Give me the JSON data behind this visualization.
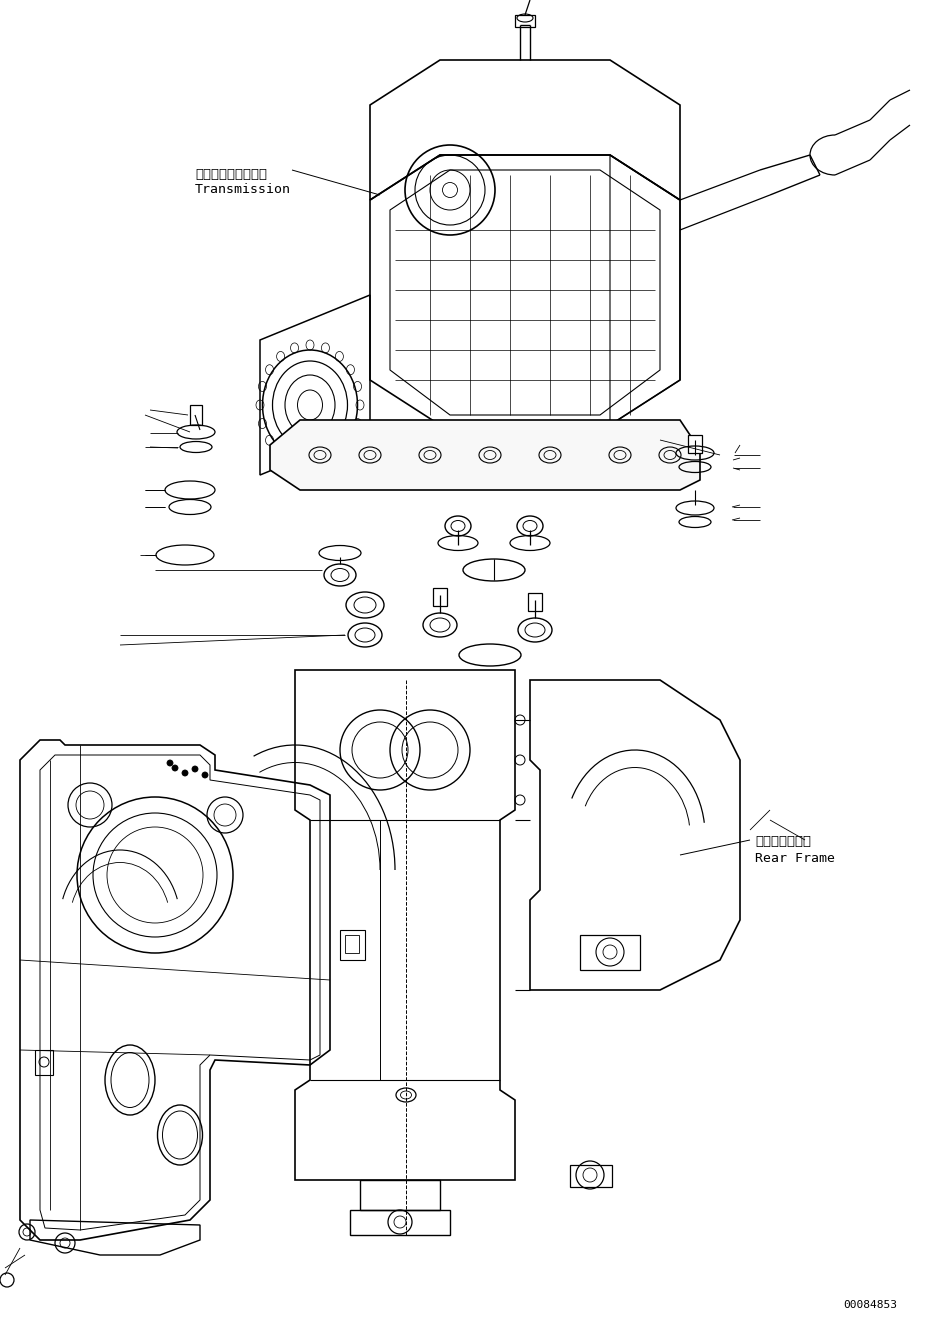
{
  "background_color": "#ffffff",
  "figure_width": 9.37,
  "figure_height": 13.27,
  "dpi": 100,
  "part_number": "00084853",
  "trans_label_jp": "トランスミッション",
  "trans_label_en": "Transmission",
  "frame_label_jp": "リヤーフレーム",
  "frame_label_en": "Rear Frame",
  "line_color": "#000000"
}
